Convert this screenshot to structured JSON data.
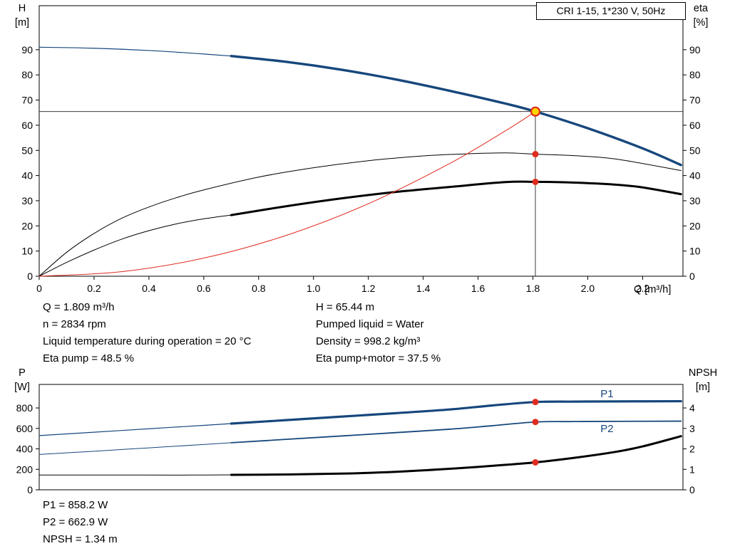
{
  "colors": {
    "curve_blue": "#16477c",
    "curve_black": "#000000",
    "curve_red": "#e02b20",
    "marker_fill": "#ffd500",
    "marker_stroke": "#e02b20",
    "dot_red": "#e02b20",
    "axis": "#000000",
    "ref_line": "#3c3c3c"
  },
  "info_panel": {
    "left": [
      "Q = 1.809 m³/h",
      "n = 2834 rpm",
      "Liquid temperature during operation = 20 °C",
      "Eta pump = 48.5 %"
    ],
    "right": [
      "H = 65.44 m",
      "Pumped liquid = Water",
      "Density = 998.2 kg/m³",
      "Eta pump+motor = 37.5 %"
    ]
  },
  "results_panel": [
    "P1 = 858.2 W",
    "P2 = 662.9 W",
    "NPSH = 1.34 m"
  ],
  "chart_data": [
    {
      "type": "line",
      "title": "CRI 1-15, 1*230 V, 50Hz",
      "x_axis": {
        "label": "Q [m³/h]",
        "min": 0,
        "max": 2.347,
        "tick_values": [
          0,
          0.2,
          0.4,
          0.6,
          0.8,
          1.0,
          1.2,
          1.4,
          1.6,
          1.8,
          2.0,
          2.2
        ],
        "ticks": [
          "0",
          "0.2",
          "0.4",
          "0.6",
          "0.8",
          "1.0",
          "1.2",
          "1.4",
          "1.6",
          "1.8",
          "2.0",
          "2.2"
        ]
      },
      "y_left": {
        "name": "H",
        "unit": "[m]",
        "min": 0,
        "max": 107.5,
        "tick_values": [
          0,
          10,
          20,
          30,
          40,
          50,
          60,
          70,
          80,
          90
        ]
      },
      "y_right": {
        "name": "eta",
        "unit": "[%]",
        "min": 0,
        "max": 107.5,
        "tick_values": [
          0,
          10,
          20,
          30,
          40,
          50,
          60,
          70,
          80,
          90
        ]
      },
      "series": [
        {
          "name": "head-curve-thin",
          "axis": "left",
          "color_key": "curve_blue",
          "width": 1.2,
          "points": [
            [
              0,
              91
            ],
            [
              0.2,
              90.6
            ],
            [
              0.4,
              89.7
            ],
            [
              0.6,
              88.3
            ],
            [
              0.7,
              87.5
            ]
          ]
        },
        {
          "name": "head-curve",
          "axis": "left",
          "color_key": "curve_blue",
          "width": 3.4,
          "points": [
            [
              0.7,
              87.5
            ],
            [
              0.9,
              85.2
            ],
            [
              1.1,
              82.1
            ],
            [
              1.3,
              78.2
            ],
            [
              1.5,
              73.6
            ],
            [
              1.7,
              68.6
            ],
            [
              1.809,
              65.44
            ],
            [
              2.0,
              58.8
            ],
            [
              2.2,
              50.8
            ],
            [
              2.34,
              44.2
            ]
          ]
        },
        {
          "name": "eta-pump-curve",
          "axis": "right",
          "color_key": "curve_black",
          "width": 1,
          "points": [
            [
              0,
              0
            ],
            [
              0.1,
              9.5
            ],
            [
              0.2,
              17
            ],
            [
              0.3,
              23
            ],
            [
              0.4,
              27.5
            ],
            [
              0.5,
              31.2
            ],
            [
              0.6,
              34.3
            ],
            [
              0.8,
              39.4
            ],
            [
              1.0,
              43.1
            ],
            [
              1.2,
              45.9
            ],
            [
              1.4,
              47.8
            ],
            [
              1.55,
              48.6
            ],
            [
              1.7,
              49.0
            ],
            [
              1.809,
              48.5
            ],
            [
              1.95,
              47.9
            ],
            [
              2.1,
              46.6
            ],
            [
              2.34,
              42
            ]
          ]
        },
        {
          "name": "eta-pump-motor-curve-thin",
          "axis": "right",
          "color_key": "curve_black",
          "width": 1,
          "points": [
            [
              0,
              0
            ],
            [
              0.1,
              5.5
            ],
            [
              0.2,
              10.4
            ],
            [
              0.3,
              14.7
            ],
            [
              0.4,
              18.1
            ],
            [
              0.5,
              20.8
            ],
            [
              0.6,
              22.8
            ],
            [
              0.7,
              24.3
            ]
          ]
        },
        {
          "name": "eta-pump-motor-curve",
          "axis": "right",
          "color_key": "curve_black",
          "width": 3,
          "points": [
            [
              0.7,
              24.3
            ],
            [
              0.9,
              27.8
            ],
            [
              1.1,
              30.9
            ],
            [
              1.3,
              33.5
            ],
            [
              1.5,
              35.5
            ],
            [
              1.7,
              37.4
            ],
            [
              1.809,
              37.5
            ],
            [
              1.95,
              37.2
            ],
            [
              2.1,
              36.4
            ],
            [
              2.2,
              35.3
            ],
            [
              2.34,
              32.6
            ]
          ]
        },
        {
          "name": "duty-curve-red",
          "axis": "left",
          "color_key": "curve_red",
          "width": 1,
          "points": [
            [
              0,
              0
            ],
            [
              0.3,
              1.8
            ],
            [
              0.6,
              7.2
            ],
            [
              0.9,
              16.2
            ],
            [
              1.2,
              28.8
            ],
            [
              1.5,
              45.0
            ],
            [
              1.7,
              57.8
            ],
            [
              1.809,
              65.44
            ]
          ]
        }
      ],
      "reference_lines": [
        {
          "name": "head-reference-line",
          "orientation": "horizontal",
          "value": 65.44
        },
        {
          "name": "flow-reference-line",
          "orientation": "vertical",
          "value": 1.809,
          "to": 65.44
        }
      ],
      "markers": [
        {
          "name": "operating-point-marker",
          "x": 1.809,
          "y": 65.44,
          "axis": "left",
          "style": "ring"
        },
        {
          "name": "eta-pump-point-marker",
          "x": 1.809,
          "y": 48.5,
          "axis": "right",
          "style": "dot"
        },
        {
          "name": "eta-pump-motor-point-marker",
          "x": 1.809,
          "y": 37.5,
          "axis": "right",
          "style": "dot"
        }
      ],
      "operating_point": {
        "Q_m3h": 1.809,
        "H_m": 65.44,
        "eta_pump_pct": 48.5,
        "eta_pump_motor_pct": 37.5
      }
    },
    {
      "type": "line",
      "x_axis": {
        "label": "",
        "min": 0,
        "max": 2.347,
        "tick_values": [],
        "ticks": []
      },
      "y_left": {
        "name": "P",
        "unit": "[W]",
        "min": 0,
        "max": 1030,
        "tick_values": [
          0,
          200,
          400,
          600,
          800
        ]
      },
      "y_right": {
        "name": "NPSH",
        "unit": "[m]",
        "min": 0,
        "max": 5.15,
        "tick_values": [
          0,
          1,
          2,
          3,
          4
        ]
      },
      "series": [
        {
          "name": "p1-curve-thin",
          "axis": "left",
          "color_key": "curve_blue",
          "width": 1.2,
          "points": [
            [
              0,
              530
            ],
            [
              0.2,
              563
            ],
            [
              0.4,
              597
            ],
            [
              0.6,
              630
            ],
            [
              0.7,
              647
            ]
          ]
        },
        {
          "name": "p1-curve",
          "axis": "left",
          "color_key": "curve_blue",
          "width": 3.2,
          "points": [
            [
              0.7,
              647
            ],
            [
              0.9,
              681
            ],
            [
              1.1,
              715
            ],
            [
              1.3,
              749
            ],
            [
              1.5,
              786
            ],
            [
              1.65,
              824
            ],
            [
              1.809,
              858.2
            ],
            [
              1.95,
              862
            ],
            [
              2.1,
              864
            ],
            [
              2.34,
              866
            ]
          ]
        },
        {
          "name": "p2-curve-thin",
          "axis": "left",
          "color_key": "curve_blue",
          "width": 1,
          "points": [
            [
              0,
              345
            ],
            [
              0.2,
              377
            ],
            [
              0.4,
              410
            ],
            [
              0.6,
              443
            ],
            [
              0.7,
              460
            ]
          ]
        },
        {
          "name": "p2-curve",
          "axis": "left",
          "color_key": "curve_blue",
          "width": 1.8,
          "points": [
            [
              0.7,
              460
            ],
            [
              0.9,
              493
            ],
            [
              1.1,
              526
            ],
            [
              1.3,
              559
            ],
            [
              1.5,
              593
            ],
            [
              1.65,
              626
            ],
            [
              1.809,
              662.9
            ],
            [
              1.95,
              667
            ],
            [
              2.1,
              669
            ],
            [
              2.34,
              671
            ]
          ]
        },
        {
          "name": "npsh-curve-thin",
          "axis": "right",
          "color_key": "curve_black",
          "width": 1,
          "points": [
            [
              0,
              0.72
            ],
            [
              0.2,
              0.72
            ],
            [
              0.4,
              0.72
            ],
            [
              0.55,
              0.72
            ],
            [
              0.7,
              0.73
            ]
          ]
        },
        {
          "name": "npsh-curve",
          "axis": "right",
          "color_key": "curve_black",
          "width": 3,
          "points": [
            [
              0.7,
              0.73
            ],
            [
              0.9,
              0.75
            ],
            [
              1.1,
              0.79
            ],
            [
              1.3,
              0.88
            ],
            [
              1.5,
              1.03
            ],
            [
              1.65,
              1.17
            ],
            [
              1.809,
              1.34
            ],
            [
              1.95,
              1.56
            ],
            [
              2.1,
              1.85
            ],
            [
              2.2,
              2.12
            ],
            [
              2.34,
              2.62
            ]
          ]
        }
      ],
      "reference_lines": [],
      "markers": [
        {
          "name": "p1-point-marker",
          "x": 1.809,
          "y": 858.2,
          "axis": "left",
          "style": "dot"
        },
        {
          "name": "p2-point-marker",
          "x": 1.809,
          "y": 662.9,
          "axis": "left",
          "style": "dot"
        },
        {
          "name": "npsh-point-marker",
          "x": 1.809,
          "y": 1.34,
          "axis": "right",
          "style": "dot"
        }
      ],
      "curve_labels": [
        {
          "text": "P1",
          "x": 2.07,
          "y": 905,
          "axis": "left",
          "color_key": "curve_blue"
        },
        {
          "text": "P2",
          "x": 2.07,
          "y": 563,
          "axis": "left",
          "color_key": "curve_blue"
        }
      ],
      "operating_point": {
        "P1_W": 858.2,
        "P2_W": 662.9,
        "NPSH_m": 1.34
      }
    }
  ]
}
